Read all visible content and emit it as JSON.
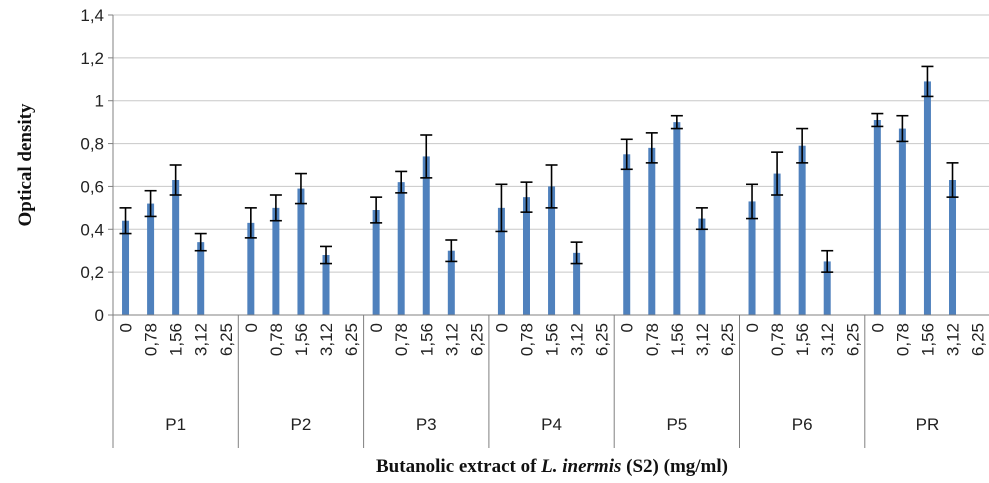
{
  "chart_data": {
    "type": "bar",
    "xlabel_parts": [
      "Butanolic extract of ",
      "L. inermis",
      " (S2) (mg/ml)"
    ],
    "ylabel": "Optical density",
    "ylim": [
      0,
      1.4
    ],
    "y_ticks": [
      "0",
      "0,2",
      "0,4",
      "0,6",
      "0,8",
      "1",
      "1,2",
      "1,4"
    ],
    "grid": true,
    "sub_categories": [
      "0",
      "0,78",
      "1,56",
      "3,12",
      "6,25"
    ],
    "groups": [
      {
        "label": "P1",
        "values": [
          0.44,
          0.52,
          0.63,
          0.34,
          null
        ],
        "errors": [
          0.06,
          0.06,
          0.07,
          0.04,
          null
        ]
      },
      {
        "label": "P2",
        "values": [
          0.43,
          0.5,
          0.59,
          0.28,
          null
        ],
        "errors": [
          0.07,
          0.06,
          0.07,
          0.04,
          null
        ]
      },
      {
        "label": "P3",
        "values": [
          0.49,
          0.62,
          0.74,
          0.3,
          null
        ],
        "errors": [
          0.06,
          0.05,
          0.1,
          0.05,
          null
        ]
      },
      {
        "label": "P4",
        "values": [
          0.5,
          0.55,
          0.6,
          0.29,
          null
        ],
        "errors": [
          0.11,
          0.07,
          0.1,
          0.05,
          null
        ]
      },
      {
        "label": "P5",
        "values": [
          0.75,
          0.78,
          0.9,
          0.45,
          null
        ],
        "errors": [
          0.07,
          0.07,
          0.03,
          0.05,
          null
        ]
      },
      {
        "label": "P6",
        "values": [
          0.53,
          0.66,
          0.79,
          0.25,
          null
        ],
        "errors": [
          0.08,
          0.1,
          0.08,
          0.05,
          null
        ]
      },
      {
        "label": "PR",
        "values": [
          0.91,
          0.87,
          1.09,
          0.63,
          null
        ],
        "errors": [
          0.03,
          0.06,
          0.07,
          0.08,
          null
        ]
      }
    ],
    "colors": {
      "bar": "#4f81bd",
      "grid": "#c8c8c8",
      "axis": "#808080",
      "error": "#000000"
    }
  }
}
